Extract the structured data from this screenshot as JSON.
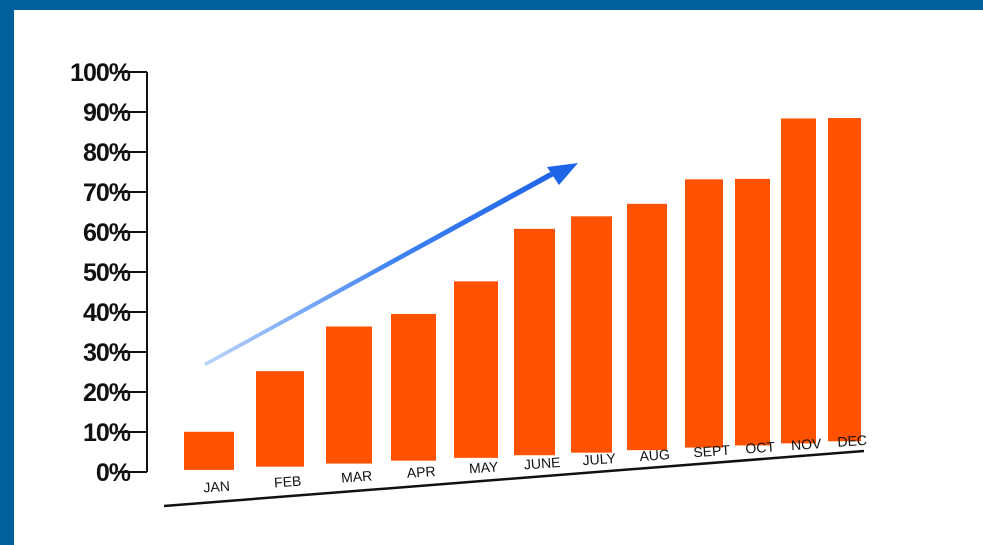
{
  "colors": {
    "frame": "#00609c",
    "background": "#ffffff",
    "bar": "#ff5200",
    "axis": "#111111",
    "arrow": "#1d64e8"
  },
  "chart_data": {
    "type": "bar",
    "title": "",
    "xlabel": "",
    "ylabel": "",
    "categories": [
      "JAN",
      "FEB",
      "MAR",
      "APR",
      "MAY",
      "JUNE",
      "JULY",
      "AUG",
      "SEPT",
      "OCT",
      "NOV",
      "DEC"
    ],
    "values": [
      10,
      25,
      36,
      39,
      47,
      60,
      63,
      66,
      72,
      72,
      87,
      87
    ],
    "yticks": [
      "0%",
      "10%",
      "20%",
      "30%",
      "40%",
      "50%",
      "60%",
      "70%",
      "80%",
      "90%",
      "100%"
    ],
    "ylim": [
      0,
      100
    ],
    "grid": false,
    "legend": "none",
    "annotations": [
      {
        "type": "trend-arrow",
        "direction": "up-right"
      }
    ]
  }
}
